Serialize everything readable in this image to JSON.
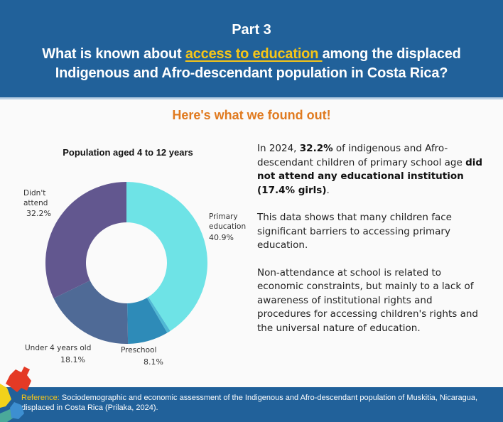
{
  "header": {
    "part": "Part 3",
    "question_before": "What is known about ",
    "question_highlight": "access to education ",
    "question_after_line1": "among the displaced",
    "question_line2": "Indigenous and Afro-descendant population in Costa Rica?",
    "background_color": "#21619a",
    "highlight_color": "#f5c518"
  },
  "subtitle": "Here's what we found out!",
  "chart_data": {
    "type": "pie",
    "subtype": "donut",
    "title": "Population aged 4 to 12 years",
    "categories": [
      "Primary education",
      "Other (unlabeled)",
      "Preschool",
      "Under 4 years old",
      "Didn't attend"
    ],
    "values": [
      40.9,
      0.7,
      8.1,
      18.1,
      32.2
    ],
    "labels": [
      "40.9%",
      "",
      "8.1%",
      "18.1%",
      "32.2%"
    ],
    "colors": [
      "#6ee3e6",
      "#4fb8d4",
      "#2e8bb8",
      "#4f6a96",
      "#62578f"
    ],
    "start_angle": "12 o'clock",
    "direction": "clockwise"
  },
  "chart_labels": {
    "primary_line1": "Primary",
    "primary_line2": "education",
    "primary_pct": "40.9%",
    "preschool": "Preschool",
    "preschool_pct": "8.1%",
    "under4": "Under 4 years old",
    "under4_pct": "18.1%",
    "didnt_line1": "Didn't",
    "didnt_line2": "attend",
    "didnt_pct": "32.2%"
  },
  "body": {
    "p1_a": "In 2024, ",
    "p1_b": "32.2%",
    "p1_c": " of indigenous and Afro-descendant children of primary school age ",
    "p1_d": "did not attend any educational institution (17.4% girls)",
    "p1_e": ".",
    "p2": "This data shows that many children face significant barriers to accessing primary education.",
    "p3": "Non-attendance at school is related to economic constraints, but mainly to a lack of awareness of institutional rights and procedures for accessing children's rights and the universal nature of education."
  },
  "footer": {
    "ref_label": "Reference:",
    "ref_text": " Sociodemographic and economic assessment of the Indigenous and Afro-descendant population of Muskitia, Nicaragua, displaced in Costa Rica (Prilaka, 2024)."
  }
}
